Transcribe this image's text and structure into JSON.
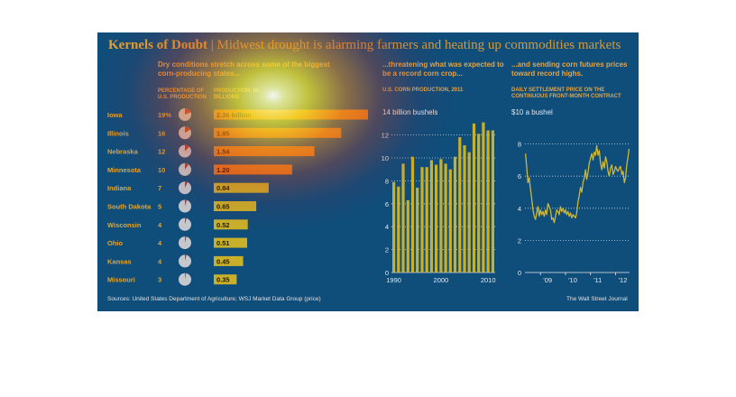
{
  "header": {
    "title_main": "Kernels of Doubt",
    "title_sep": "|",
    "title_sub": "Midwest drought is alarming farmers and heating up commodities markets"
  },
  "states_panel": {
    "heading": "Dry conditions stretch across some of the biggest corn-producing states...",
    "col_share_label": "PERCENTAGE OF U.S. PRODUCTION",
    "col_prod_label": "PRODUCTION, IN BILLIONS"
  },
  "production_panel": {
    "heading": "...threatening what was expected to be a record corn crop...",
    "subheading": "U.S. CORN PRODUCTION, 2011",
    "unit_label": "14 billion bushels"
  },
  "futures_panel": {
    "heading": "...and sending corn futures prices toward record highs.",
    "subheading": "DAILY SETTLEMENT PRICE ON THE CONTINUOUS FRONT-MONTH CONTRACT",
    "unit_label": "$10 a bushel"
  },
  "footer": {
    "source": "Sources: United States Department of Agriculture; WSJ Market Data Group (price)",
    "credit": "The Wall Street Journal"
  },
  "colors": {
    "background": "#0f4d7a",
    "accent": "#e6a52c",
    "bar_yellow": "#c9b02a",
    "bar_orange": "#e07a1e",
    "pie_bg": "#c4c8cc",
    "pie_slice": "#c0392b",
    "line": "#cdb83a"
  },
  "chart_data": [
    {
      "type": "bar",
      "orientation": "horizontal",
      "categories": [
        "Iowa",
        "Illinois",
        "Nebraska",
        "Minnesota",
        "Indiana",
        "South Dakota",
        "Wisconsin",
        "Ohio",
        "Kansas",
        "Missouri"
      ],
      "share_pct": [
        19,
        16,
        12,
        10,
        7,
        5,
        4,
        4,
        4,
        3
      ],
      "share_labels": [
        "19%",
        "16",
        "12",
        "10",
        "7",
        "5",
        "4",
        "4",
        "4",
        "3"
      ],
      "values": [
        2.36,
        1.95,
        1.54,
        1.2,
        0.84,
        0.65,
        0.52,
        0.51,
        0.45,
        0.35
      ],
      "value_labels": [
        "2.36 billion",
        "1.95",
        "1.54",
        "1.20",
        "0.84",
        "0.65",
        "0.52",
        "0.51",
        "0.45",
        "0.35"
      ]
    },
    {
      "type": "bar",
      "x": [
        1990,
        1991,
        1992,
        1993,
        1994,
        1995,
        1996,
        1997,
        1998,
        1999,
        2000,
        2001,
        2002,
        2003,
        2004,
        2005,
        2006,
        2007,
        2008,
        2009,
        2010,
        2011
      ],
      "values": [
        7.9,
        7.5,
        9.5,
        6.3,
        10.1,
        7.4,
        9.2,
        9.2,
        9.8,
        9.4,
        9.9,
        9.5,
        9.0,
        10.1,
        11.8,
        11.1,
        10.5,
        13.0,
        12.1,
        13.1,
        12.4,
        12.4
      ],
      "ylim": [
        0,
        14
      ],
      "yticks": [
        0,
        2,
        4,
        6,
        8,
        10,
        12
      ],
      "xticks": [
        "1990",
        "2000",
        "2010"
      ]
    },
    {
      "type": "line",
      "x": [
        2008.4,
        2008.45,
        2008.5,
        2008.55,
        2008.6,
        2008.65,
        2008.7,
        2008.75,
        2008.8,
        2008.85,
        2008.9,
        2008.95,
        2009.0,
        2009.05,
        2009.1,
        2009.15,
        2009.2,
        2009.25,
        2009.3,
        2009.35,
        2009.4,
        2009.45,
        2009.5,
        2009.55,
        2009.6,
        2009.65,
        2009.7,
        2009.75,
        2009.8,
        2009.85,
        2009.9,
        2009.95,
        2010.0,
        2010.05,
        2010.1,
        2010.15,
        2010.2,
        2010.25,
        2010.3,
        2010.35,
        2010.4,
        2010.45,
        2010.5,
        2010.55,
        2010.6,
        2010.65,
        2010.7,
        2010.75,
        2010.8,
        2010.85,
        2010.9,
        2010.95,
        2011.0,
        2011.05,
        2011.1,
        2011.15,
        2011.2,
        2011.25,
        2011.3,
        2011.35,
        2011.4,
        2011.45,
        2011.5,
        2011.55,
        2011.6,
        2011.65,
        2011.7,
        2011.75,
        2011.8,
        2011.85,
        2011.9,
        2011.95,
        2012.0,
        2012.05,
        2012.1,
        2012.15,
        2012.2,
        2012.25,
        2012.3,
        2012.35,
        2012.4,
        2012.45,
        2012.5,
        2012.54
      ],
      "values": [
        7.4,
        6.6,
        5.6,
        5.9,
        5.2,
        4.6,
        3.9,
        3.5,
        3.3,
        3.7,
        4.1,
        3.5,
        3.9,
        3.6,
        3.8,
        3.5,
        3.9,
        3.6,
        4.3,
        4.1,
        3.9,
        3.3,
        3.4,
        3.1,
        3.5,
        3.9,
        3.8,
        3.6,
        4.1,
        3.8,
        4.0,
        3.7,
        3.9,
        3.6,
        3.8,
        3.5,
        3.7,
        3.4,
        3.6,
        3.5,
        3.4,
        3.7,
        4.4,
        4.8,
        5.3,
        5.0,
        5.6,
        5.9,
        6.4,
        5.8,
        6.2,
        6.8,
        7.1,
        7.4,
        7.0,
        7.5,
        7.3,
        7.9,
        7.3,
        7.6,
        6.8,
        6.4,
        6.9,
        6.5,
        7.2,
        6.9,
        6.3,
        6.0,
        6.5,
        6.7,
        6.1,
        6.3,
        6.6,
        6.4,
        6.3,
        6.5,
        6.6,
        6.1,
        6.3,
        5.6,
        5.9,
        6.7,
        7.2,
        7.7
      ],
      "ylim": [
        0,
        10
      ],
      "yticks": [
        0,
        2,
        4,
        6,
        8
      ],
      "xticks": [
        "'09",
        "'10",
        "'11",
        "'12"
      ]
    }
  ]
}
